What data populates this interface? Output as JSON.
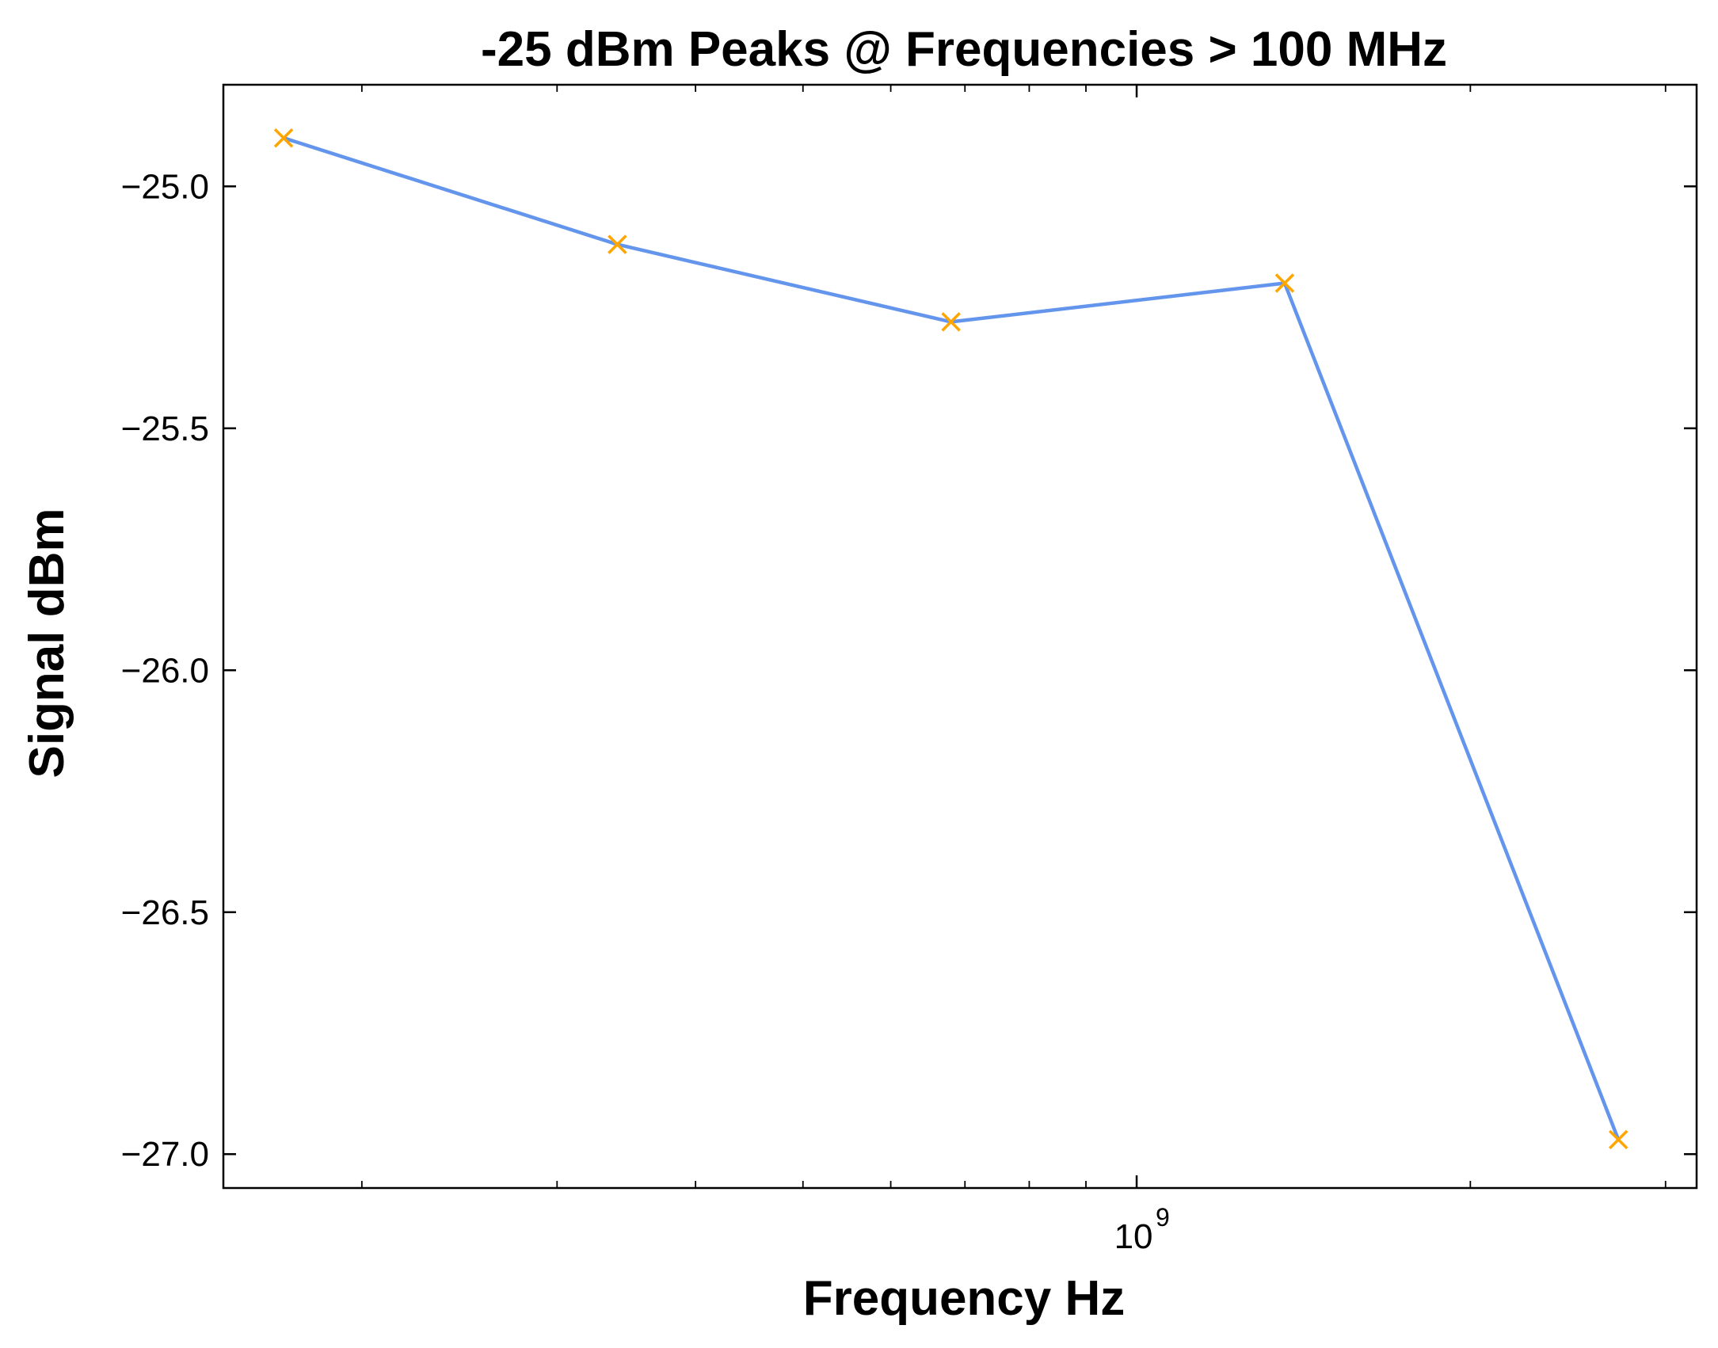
{
  "chart_data": {
    "type": "line",
    "title": "-25 dBm Peaks @ Frequencies > 100 MHz",
    "xlabel": "Frequency Hz",
    "ylabel": "Signal dBm",
    "xscale": "log",
    "xlim": [
      150000000,
      3200000000
    ],
    "ylim": [
      -27.07,
      -24.79
    ],
    "grid": false,
    "x_ticks": [
      {
        "base": "10",
        "exp": "9",
        "value": 1000000000
      }
    ],
    "y_ticks": [
      {
        "label": "−25.0",
        "value": -25.0
      },
      {
        "label": "−25.5",
        "value": -25.5
      },
      {
        "label": "−26.0",
        "value": -26.0
      },
      {
        "label": "−26.5",
        "value": -26.5
      },
      {
        "label": "−27.0",
        "value": -27.0
      }
    ],
    "x_minor_ticks": [
      200000000,
      300000000,
      400000000,
      500000000,
      600000000,
      700000000,
      800000000,
      900000000,
      2000000000,
      3000000000
    ],
    "series": [
      {
        "x": [
          170000000,
          340000000,
          680000000,
          1360000000,
          2720000000
        ],
        "y": [
          -24.9,
          -25.12,
          -25.28,
          -25.2,
          -26.97
        ],
        "line_color": "#6495ED",
        "marker": "x",
        "marker_color": "#FFA500"
      }
    ]
  }
}
